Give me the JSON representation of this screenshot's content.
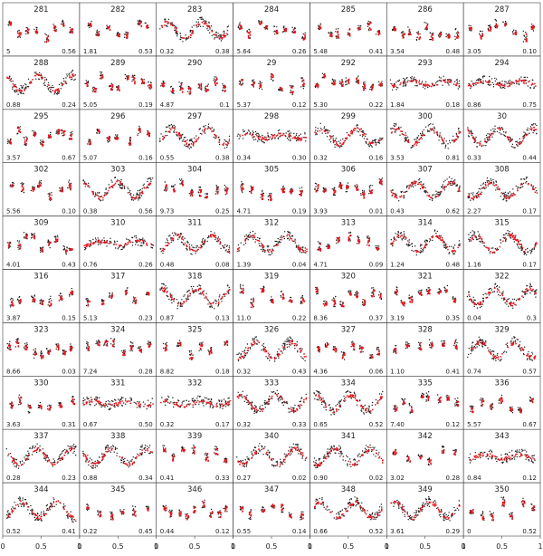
{
  "chart_data": {
    "type": "scatter",
    "grid": false,
    "legend": "none",
    "x_ticks": [
      "0",
      "0.5",
      "1"
    ],
    "x_range": [
      0,
      1
    ],
    "colors": {
      "observed": "#1a1a1a",
      "model": "#e8141b",
      "frame": "#444444"
    },
    "series": [
      {
        "name": ""
      },
      {
        "name": ""
      }
    ],
    "panels": [
      {
        "id": "281",
        "left": "5",
        "right": "0.56",
        "shape": "scatter"
      },
      {
        "id": "282",
        "left": "1.81",
        "right": "0.53",
        "shape": "scatter"
      },
      {
        "id": "283",
        "left": "0.32",
        "right": "0.38",
        "shape": "wave"
      },
      {
        "id": "284",
        "left": "5.64",
        "right": "0.26",
        "shape": "scatter"
      },
      {
        "id": "285",
        "left": "5.48",
        "right": "0.41",
        "shape": "scatter"
      },
      {
        "id": "286",
        "left": "3.54",
        "right": "0.48",
        "shape": "scatter"
      },
      {
        "id": "287",
        "left": "3.05",
        "right": "0.10",
        "shape": "scatter"
      },
      {
        "id": "288",
        "left": "0.88",
        "right": "0.24",
        "shape": "wave"
      },
      {
        "id": "289",
        "left": "5.05",
        "right": "0.19",
        "shape": "scatter"
      },
      {
        "id": "290",
        "left": "4.87",
        "right": "0.1",
        "shape": "scatter"
      },
      {
        "id": "29",
        "left": "5.37",
        "right": "0.12",
        "shape": "scatter"
      },
      {
        "id": "292",
        "left": "5.30",
        "right": "0.22",
        "shape": "scatter"
      },
      {
        "id": "293",
        "left": "1.84",
        "right": "0.18",
        "shape": "flat"
      },
      {
        "id": "294",
        "left": "0.86",
        "right": "0.75",
        "shape": "flat"
      },
      {
        "id": "295",
        "left": "3.57",
        "right": "0.67",
        "shape": "scatter"
      },
      {
        "id": "296",
        "left": "5.07",
        "right": "0.16",
        "shape": "scatter"
      },
      {
        "id": "297",
        "left": "0.55",
        "right": "0.38",
        "shape": "wave"
      },
      {
        "id": "298",
        "left": "0.34",
        "right": "0.30",
        "shape": "flat"
      },
      {
        "id": "299",
        "left": "0.32",
        "right": "0.16",
        "shape": "wave"
      },
      {
        "id": "300",
        "left": "3.53",
        "right": "0.81",
        "shape": "wave"
      },
      {
        "id": "30",
        "left": "0.33",
        "right": "0.44",
        "shape": "wave"
      },
      {
        "id": "302",
        "left": "5.56",
        "right": "0.10",
        "shape": "scatter"
      },
      {
        "id": "303",
        "left": "0.38",
        "right": "0.56",
        "shape": "wave"
      },
      {
        "id": "304",
        "left": "9.73",
        "right": "0.25",
        "shape": "scatter"
      },
      {
        "id": "305",
        "left": "4.71",
        "right": "0.19",
        "shape": "scatter"
      },
      {
        "id": "306",
        "left": "3.93",
        "right": "0.01",
        "shape": "scatter"
      },
      {
        "id": "307",
        "left": "0.43",
        "right": "0.62",
        "shape": "wave"
      },
      {
        "id": "308",
        "left": "2.27",
        "right": "0.17",
        "shape": "wave"
      },
      {
        "id": "309",
        "left": "4.01",
        "right": "0.43",
        "shape": "scatter"
      },
      {
        "id": "310",
        "left": "0.76",
        "right": "0.26",
        "shape": "flat"
      },
      {
        "id": "311",
        "left": "0.48",
        "right": "0.08",
        "shape": "wave"
      },
      {
        "id": "312",
        "left": "1.39",
        "right": "0.04",
        "shape": "wave"
      },
      {
        "id": "313",
        "left": "4.71",
        "right": "0.09",
        "shape": "scatter"
      },
      {
        "id": "314",
        "left": "1.24",
        "right": "0.48",
        "shape": "wave"
      },
      {
        "id": "315",
        "left": "1.16",
        "right": "0.17",
        "shape": "wave"
      },
      {
        "id": "316",
        "left": "3.87",
        "right": "0.15",
        "shape": "scatter"
      },
      {
        "id": "317",
        "left": "5.13",
        "right": "0.23",
        "shape": "scatter"
      },
      {
        "id": "318",
        "left": "0.87",
        "right": "0.13",
        "shape": "wave"
      },
      {
        "id": "319",
        "left": "11.0",
        "right": "0.22",
        "shape": "scatter"
      },
      {
        "id": "320",
        "left": "8.36",
        "right": "0.37",
        "shape": "scatter"
      },
      {
        "id": "321",
        "left": "3.19",
        "right": "0.35",
        "shape": "scatter"
      },
      {
        "id": "322",
        "left": "0.04",
        "right": "0.3",
        "shape": "wave"
      },
      {
        "id": "323",
        "left": "8.66",
        "right": "0.03",
        "shape": "scatter"
      },
      {
        "id": "324",
        "left": "7.24",
        "right": "0.28",
        "shape": "scatter"
      },
      {
        "id": "325",
        "left": "8.82",
        "right": "0.18",
        "shape": "scatter"
      },
      {
        "id": "326",
        "left": "0.32",
        "right": "0.43",
        "shape": "wave"
      },
      {
        "id": "327",
        "left": "4.36",
        "right": "0.06",
        "shape": "scatter"
      },
      {
        "id": "328",
        "left": "1.10",
        "right": "0.41",
        "shape": "scatter"
      },
      {
        "id": "329",
        "left": "0.74",
        "right": "0.57",
        "shape": "wave"
      },
      {
        "id": "330",
        "left": "3.63",
        "right": "0.31",
        "shape": "scatter"
      },
      {
        "id": "331",
        "left": "0.67",
        "right": "0.50",
        "shape": "flat"
      },
      {
        "id": "332",
        "left": "0.32",
        "right": "0.17",
        "shape": "flat"
      },
      {
        "id": "333",
        "left": "0.32",
        "right": "0.33",
        "shape": "wave"
      },
      {
        "id": "334",
        "left": "0.65",
        "right": "0.52",
        "shape": "wave"
      },
      {
        "id": "335",
        "left": "7.40",
        "right": "0.12",
        "shape": "scatter"
      },
      {
        "id": "336",
        "left": "5.57",
        "right": "0.67",
        "shape": "scatter"
      },
      {
        "id": "337",
        "left": "0.28",
        "right": "0.23",
        "shape": "wave"
      },
      {
        "id": "338",
        "left": "0.88",
        "right": "0.34",
        "shape": "wave"
      },
      {
        "id": "339",
        "left": "0.41",
        "right": "0.33",
        "shape": "scatter"
      },
      {
        "id": "340",
        "left": "0.27",
        "right": "0.02",
        "shape": "wave"
      },
      {
        "id": "341",
        "left": "0.90",
        "right": "0.02",
        "shape": "wave"
      },
      {
        "id": "342",
        "left": "3.02",
        "right": "0.28",
        "shape": "scatter"
      },
      {
        "id": "343",
        "left": "0.84",
        "right": "0.12",
        "shape": "flat"
      },
      {
        "id": "344",
        "left": "0.52",
        "right": "0.41",
        "shape": "wave"
      },
      {
        "id": "345",
        "left": "0.22",
        "right": "0.45",
        "shape": "scatter"
      },
      {
        "id": "346",
        "left": "0.44",
        "right": "0.12",
        "shape": "scatter"
      },
      {
        "id": "347",
        "left": "0.55",
        "right": "0.14",
        "shape": "scatter"
      },
      {
        "id": "348",
        "left": "0.66",
        "right": "0.52",
        "shape": "wave"
      },
      {
        "id": "349",
        "left": "3.61",
        "right": "0.29",
        "shape": "wave"
      },
      {
        "id": "350",
        "left": "0",
        "right": "0.52",
        "shape": "scatter"
      }
    ]
  }
}
